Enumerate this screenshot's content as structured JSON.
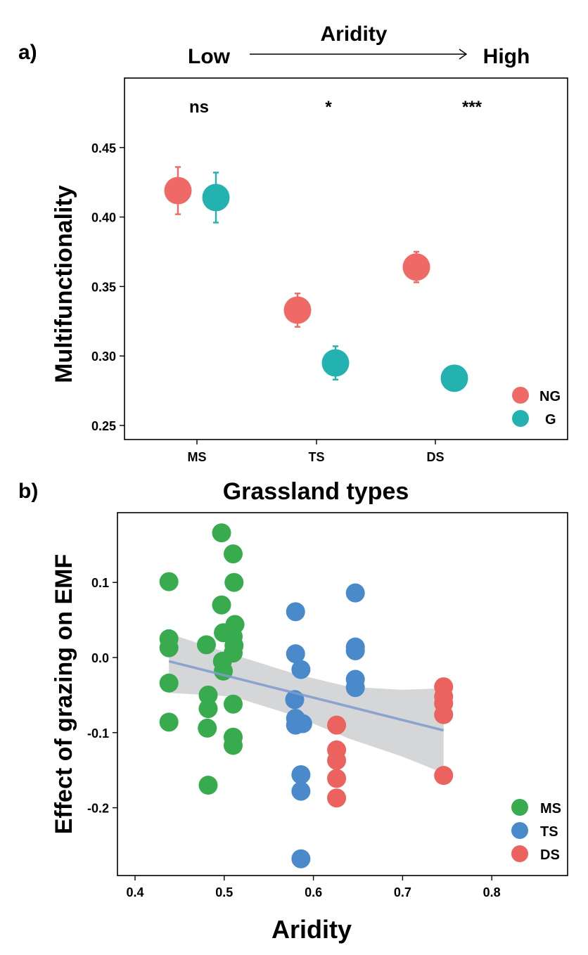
{
  "panel_a": {
    "tag": "a)",
    "header": {
      "title": "Aridity",
      "low": "Low",
      "high": "High"
    },
    "significance": [
      "ns",
      "*",
      "***"
    ],
    "legend": [
      "NG",
      "G"
    ]
  },
  "panel_b": {
    "tag": "b)",
    "title": "Grassland types",
    "legend": [
      "MS",
      "TS",
      "DS"
    ]
  },
  "colors": {
    "NG": "#EF6A66",
    "G": "#23B2B0",
    "MS": "#38AB4F",
    "TS": "#4A8ACB",
    "DS": "#EC625F",
    "fit": "#7C9BCC",
    "band": "#C5C8C9"
  },
  "chart_data": [
    {
      "type": "scatter",
      "title": "",
      "xlabel": "",
      "ylabel": "Multifunctionality",
      "categories": [
        "MS",
        "TS",
        "DS"
      ],
      "yticks": [
        "0.25",
        "0.30",
        "0.35",
        "0.40",
        "0.45"
      ],
      "ylim": [
        0.24,
        0.49
      ],
      "legend_position": "bottom-right",
      "series": [
        {
          "name": "NG",
          "values": [
            0.419,
            0.333,
            0.364
          ],
          "errors": [
            0.017,
            0.012,
            0.011
          ]
        },
        {
          "name": "G",
          "values": [
            0.414,
            0.295,
            0.284
          ],
          "errors": [
            0.018,
            0.012,
            0.0
          ]
        }
      ]
    },
    {
      "type": "scatter",
      "title": "Grassland types",
      "xlabel": "Aridity",
      "ylabel": "Effect of grazing on EMF",
      "xticks": [
        "0.4",
        "0.5",
        "0.6",
        "0.7",
        "0.8"
      ],
      "yticks": [
        "-0.2",
        "-0.1",
        "0.0",
        "0.1"
      ],
      "xlim": [
        0.38,
        0.885
      ],
      "ylim": [
        -0.285,
        0.19
      ],
      "legend_position": "bottom-right",
      "series": [
        {
          "name": "MS",
          "points": [
            [
              0.438,
              0.101
            ],
            [
              0.438,
              0.025
            ],
            [
              0.438,
              0.013
            ],
            [
              0.438,
              -0.034
            ],
            [
              0.438,
              -0.086
            ],
            [
              0.48,
              0.017
            ],
            [
              0.482,
              -0.05
            ],
            [
              0.482,
              -0.068
            ],
            [
              0.481,
              -0.094
            ],
            [
              0.482,
              -0.17
            ],
            [
              0.497,
              0.166
            ],
            [
              0.497,
              0.07
            ],
            [
              0.499,
              0.033
            ],
            [
              0.498,
              -0.005
            ],
            [
              0.499,
              -0.018
            ],
            [
              0.51,
              0.138
            ],
            [
              0.511,
              0.1
            ],
            [
              0.512,
              0.044
            ],
            [
              0.51,
              0.028
            ],
            [
              0.511,
              0.016
            ],
            [
              0.51,
              0.006
            ],
            [
              0.51,
              -0.062
            ],
            [
              0.51,
              -0.106
            ],
            [
              0.51,
              -0.117
            ]
          ]
        },
        {
          "name": "TS",
          "points": [
            [
              0.58,
              0.061
            ],
            [
              0.58,
              0.005
            ],
            [
              0.586,
              -0.016
            ],
            [
              0.579,
              -0.056
            ],
            [
              0.58,
              -0.081
            ],
            [
              0.58,
              -0.09
            ],
            [
              0.588,
              -0.088
            ],
            [
              0.586,
              -0.156
            ],
            [
              0.586,
              -0.178
            ],
            [
              0.586,
              -0.268
            ],
            [
              0.647,
              0.086
            ],
            [
              0.647,
              0.014
            ],
            [
              0.647,
              0.009
            ],
            [
              0.647,
              -0.029
            ],
            [
              0.647,
              -0.04
            ]
          ]
        },
        {
          "name": "DS",
          "points": [
            [
              0.626,
              -0.09
            ],
            [
              0.626,
              -0.123
            ],
            [
              0.626,
              -0.137
            ],
            [
              0.626,
              -0.161
            ],
            [
              0.626,
              -0.187
            ],
            [
              0.746,
              -0.039
            ],
            [
              0.746,
              -0.052
            ],
            [
              0.746,
              -0.061
            ],
            [
              0.746,
              -0.076
            ],
            [
              0.746,
              -0.157
            ]
          ]
        }
      ],
      "fit": {
        "x": [
          0.438,
          0.746
        ],
        "y": [
          -0.005,
          -0.097
        ]
      },
      "confidence_band": {
        "upper": [
          [
            0.438,
            0.032
          ],
          [
            0.51,
            0.004
          ],
          [
            0.58,
            -0.022
          ],
          [
            0.64,
            -0.039
          ],
          [
            0.7,
            -0.043
          ],
          [
            0.746,
            -0.041
          ]
        ],
        "lower": [
          [
            0.438,
            -0.047
          ],
          [
            0.51,
            -0.052
          ],
          [
            0.58,
            -0.078
          ],
          [
            0.64,
            -0.108
          ],
          [
            0.7,
            -0.132
          ],
          [
            0.746,
            -0.154
          ]
        ]
      }
    }
  ]
}
